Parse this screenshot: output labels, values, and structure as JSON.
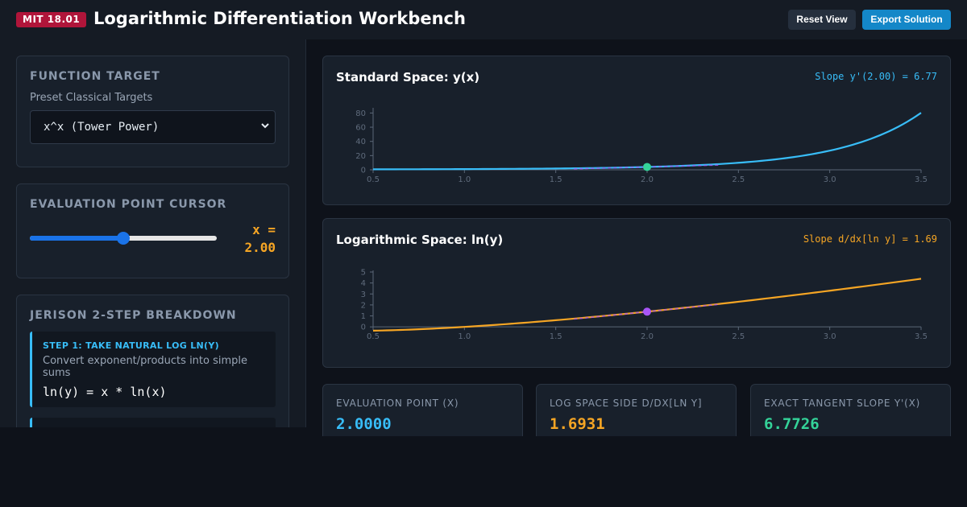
{
  "header": {
    "badge": "MIT 18.01",
    "title": "Logarithmic Differentiation Workbench",
    "reset_label": "Reset View",
    "export_label": "Export Solution"
  },
  "function_target": {
    "title": "FUNCTION TARGET",
    "subtitle": "Preset Classical Targets",
    "selected": "x^x (Tower Power)"
  },
  "cursor": {
    "title": "EVALUATION POINT CURSOR",
    "x_prefix": "x =",
    "x_value": "2.00",
    "slider_fraction": 0.5
  },
  "breakdown": {
    "title": "JERISON 2-STEP BREAKDOWN",
    "steps": [
      {
        "title": "STEP 1: TAKE NATURAL LOG LN(Y)",
        "desc": "Convert exponent/products into simple sums",
        "formula": "ln(y) = x * ln(x)"
      }
    ]
  },
  "colors": {
    "standard": "#38bdf8",
    "log": "#f5a524",
    "standard_point": "#34d399",
    "log_point": "#a855f7",
    "accent_green": "#34d399"
  },
  "chart_data": [
    {
      "type": "line",
      "title": "Standard Space: y(x)",
      "annotation": "Slope y'(2.00) = 6.77",
      "function": "x^x",
      "xlim": [
        0.5,
        3.5
      ],
      "ylim": [
        0,
        85
      ],
      "x_ticks": [
        "0.5",
        "1.0",
        "1.5",
        "2.0",
        "2.5",
        "3.0",
        "3.5"
      ],
      "y_ticks": [
        "0",
        "20",
        "40",
        "60",
        "80"
      ],
      "point": {
        "x": 2.0,
        "y": 4.0
      },
      "tangent_slope": 6.77,
      "tangent_x_range": [
        1.6,
        2.4
      ]
    },
    {
      "type": "line",
      "title": "Logarithmic Space: ln(y)",
      "annotation": "Slope d/dx[ln y] = 1.69",
      "function": "x*ln(x)",
      "xlim": [
        0.5,
        3.5
      ],
      "ylim": [
        -0.5,
        5
      ],
      "x_ticks": [
        "0.5",
        "1.0",
        "1.5",
        "2.0",
        "2.5",
        "3.0",
        "3.5"
      ],
      "y_ticks": [
        "0",
        "1",
        "2",
        "3",
        "4",
        "5"
      ],
      "point": {
        "x": 2.0,
        "y": 1.386
      },
      "tangent_slope": 1.69,
      "tangent_x_range": [
        1.6,
        2.4
      ]
    }
  ],
  "stats": [
    {
      "label": "EVALUATION POINT (X)",
      "value": "2.0000"
    },
    {
      "label": "LOG SPACE SIDE D/DX[LN Y]",
      "value": "1.6931"
    },
    {
      "label": "EXACT TANGENT SLOPE Y'(X)",
      "value": "6.7726"
    }
  ]
}
